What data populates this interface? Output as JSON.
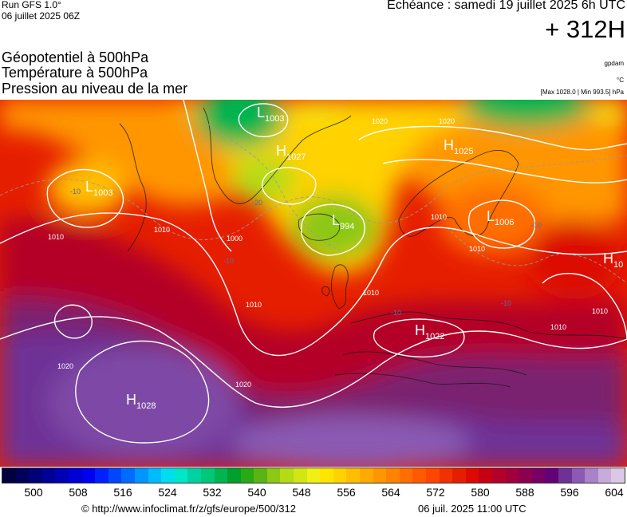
{
  "header": {
    "run_title": "Run GFS 1.0°",
    "run_date": "06 juillet 2025 06Z",
    "echeance": "Echéance : samedi 19 juillet 2025 6h UTC",
    "lead_time": "+ 312H"
  },
  "fields": [
    "Géopotentiel à 500hPa",
    "Température à 500hPa",
    "Pression au niveau de la mer"
  ],
  "units": {
    "geopotential": "gpdam",
    "temperature": "°C",
    "pressure_range": "[Max 1028.0 | Min 993.5] hPa"
  },
  "pressure_centers": [
    {
      "type": "L",
      "value": "1003",
      "label": "north-atlantic-west-low"
    },
    {
      "type": "L",
      "value": "1003",
      "label": "greenland-low"
    },
    {
      "type": "H",
      "value": "1027",
      "label": "greenland-high"
    },
    {
      "type": "L",
      "value": "994",
      "label": "iceland-low"
    },
    {
      "type": "H",
      "value": "1025",
      "label": "arctic-high"
    },
    {
      "type": "L",
      "value": "1006",
      "label": "scandinavia-low"
    },
    {
      "type": "H",
      "value": "10",
      "label": "east-high"
    },
    {
      "type": "H",
      "value": "1022",
      "label": "alps-high"
    },
    {
      "type": "H",
      "value": "1028",
      "label": "azores-high"
    }
  ],
  "isobar_labels": [
    "1020",
    "1020",
    "1010",
    "1010",
    "1000",
    "1010",
    "1010",
    "1010",
    "1010",
    "1010",
    "1020",
    "1020",
    "1010"
  ],
  "isotherm_labels": [
    "-10",
    "-20",
    "-10",
    "-10",
    "-10",
    "-10"
  ],
  "colorbar": {
    "ticks": [
      "500",
      "508",
      "516",
      "524",
      "532",
      "540",
      "548",
      "556",
      "564",
      "572",
      "580",
      "588",
      "596",
      "604"
    ],
    "colors": [
      "#000040",
      "#00005a",
      "#000078",
      "#000096",
      "#0000b4",
      "#0000d2",
      "#0000f0",
      "#0020ff",
      "#0046ff",
      "#006cff",
      "#0096ff",
      "#00bcff",
      "#00dcf0",
      "#00e6c8",
      "#00d2a0",
      "#00c878",
      "#00b450",
      "#00a02c",
      "#28aa14",
      "#5ab414",
      "#8cc814",
      "#b4dc14",
      "#d2e614",
      "#f0f014",
      "#ffe600",
      "#ffd200",
      "#ffbe00",
      "#ffaa00",
      "#ff9600",
      "#ff8200",
      "#ff6e00",
      "#ff5a00",
      "#ff4600",
      "#f03200",
      "#e61e00",
      "#dc0a00",
      "#c80014",
      "#b40028",
      "#a0003c",
      "#8c0050",
      "#780064",
      "#640078",
      "#6e3296",
      "#8c5ab4",
      "#aa82c8",
      "#c8aadc",
      "#dcc8e6"
    ]
  },
  "footer": {
    "url": "© http://www.infoclimat.fr/z/gfs/europe/500/312",
    "generated": "06 juil. 2025 11:00 UTC"
  }
}
